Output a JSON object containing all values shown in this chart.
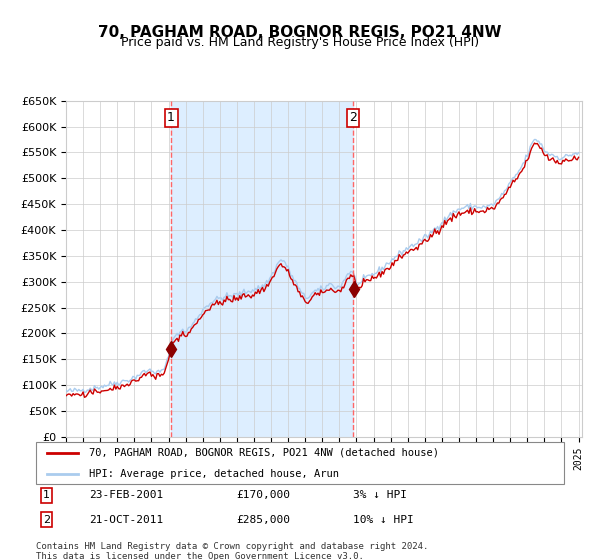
{
  "title": "70, PAGHAM ROAD, BOGNOR REGIS, PO21 4NW",
  "subtitle": "Price paid vs. HM Land Registry's House Price Index (HPI)",
  "legend_label_red": "70, PAGHAM ROAD, BOGNOR REGIS, PO21 4NW (detached house)",
  "legend_label_blue": "HPI: Average price, detached house, Arun",
  "annotation1_label": "1",
  "annotation1_date": "23-FEB-2001",
  "annotation1_price": "£170,000",
  "annotation1_hpi": "3% ↓ HPI",
  "annotation2_label": "2",
  "annotation2_date": "21-OCT-2011",
  "annotation2_price": "£285,000",
  "annotation2_hpi": "10% ↓ HPI",
  "footer": "Contains HM Land Registry data © Crown copyright and database right 2024.\nThis data is licensed under the Open Government Licence v3.0.",
  "ylim": [
    0,
    650000
  ],
  "ytick_step": 50000,
  "background_color": "#ffffff",
  "plot_bg_color": "#ffffff",
  "shaded_region_color": "#ddeeff",
  "grid_color": "#cccccc",
  "red_color": "#cc0000",
  "blue_color": "#aaccee",
  "dashed_line_color": "#ff6666",
  "title_fontsize": 11,
  "subtitle_fontsize": 9,
  "annotation1_year": 2001.15,
  "annotation2_year": 2011.8,
  "sale1_year": 2001.15,
  "sale1_price": 170000,
  "sale2_year": 2011.8,
  "sale2_price": 285000
}
